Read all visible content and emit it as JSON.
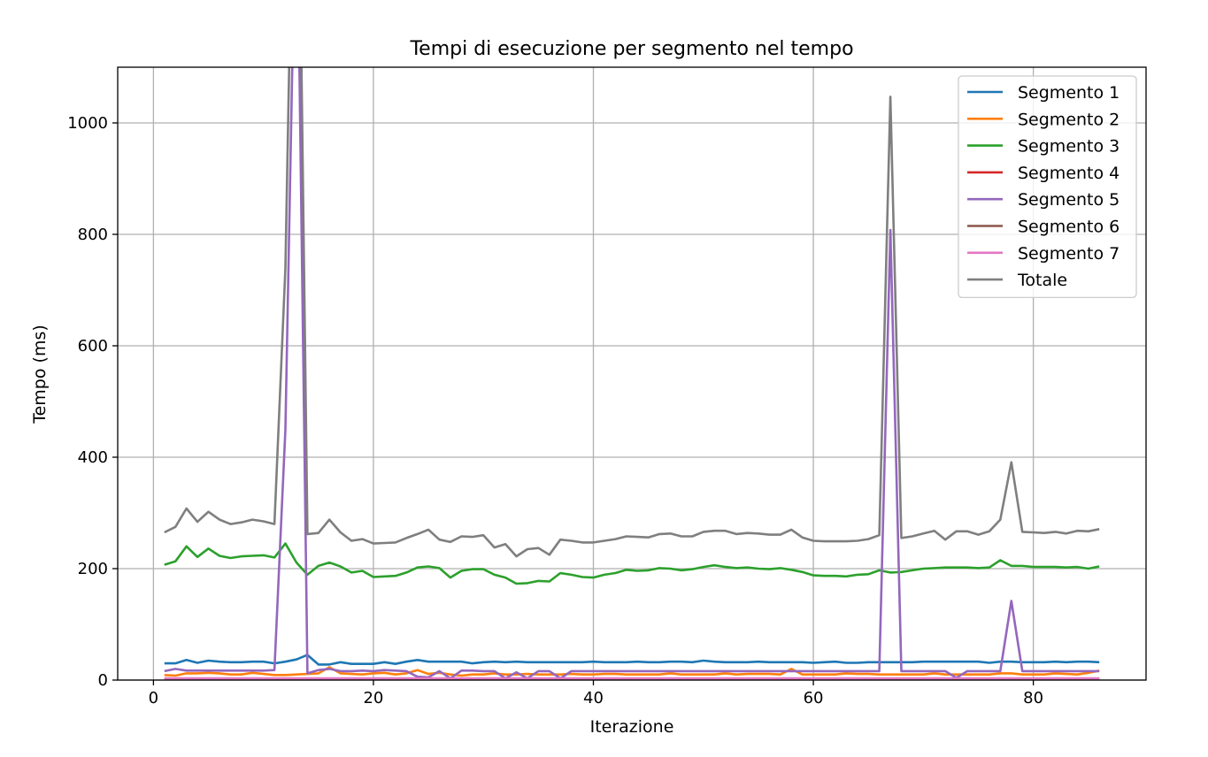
{
  "chart_data": {
    "type": "line",
    "title": "Tempi di esecuzione per segmento nel tempo",
    "xlabel": "Iterazione",
    "ylabel": "Tempo (ms)",
    "xlim": [
      -3.25,
      90.25
    ],
    "ylim": [
      0,
      1100
    ],
    "xticks": [
      0,
      20,
      40,
      60,
      80
    ],
    "yticks": [
      0,
      200,
      400,
      600,
      800,
      1000
    ],
    "grid": true,
    "legend_position": "top-right",
    "x": [
      1,
      2,
      3,
      4,
      5,
      6,
      7,
      8,
      9,
      10,
      11,
      12,
      13,
      14,
      15,
      16,
      17,
      18,
      19,
      20,
      21,
      22,
      23,
      24,
      25,
      26,
      27,
      28,
      29,
      30,
      31,
      32,
      33,
      34,
      35,
      36,
      37,
      38,
      39,
      40,
      41,
      42,
      43,
      44,
      45,
      46,
      47,
      48,
      49,
      50,
      51,
      52,
      53,
      54,
      55,
      56,
      57,
      58,
      59,
      60,
      61,
      62,
      63,
      64,
      65,
      66,
      67,
      68,
      69,
      70,
      71,
      72,
      73,
      74,
      75,
      76,
      77,
      78,
      79,
      80,
      81,
      82,
      83,
      84,
      85,
      86
    ],
    "series": [
      {
        "name": "Segmento 1",
        "color": "#1f77b4",
        "values": [
          30,
          30,
          36,
          31,
          35,
          33,
          32,
          32,
          33,
          33,
          30,
          33,
          37,
          45,
          28,
          28,
          32,
          29,
          29,
          29,
          32,
          29,
          33,
          36,
          33,
          33,
          33,
          33,
          30,
          32,
          33,
          32,
          33,
          32,
          32,
          32,
          32,
          32,
          32,
          33,
          32,
          32,
          32,
          33,
          32,
          32,
          33,
          33,
          32,
          35,
          33,
          32,
          32,
          32,
          33,
          32,
          32,
          32,
          32,
          31,
          32,
          33,
          31,
          31,
          32,
          32,
          32,
          32,
          32,
          33,
          33,
          33,
          33,
          33,
          33,
          31,
          33,
          33,
          32,
          32,
          32,
          33,
          32,
          33,
          33,
          32
        ]
      },
      {
        "name": "Segmento 2",
        "color": "#ff7f0e",
        "values": [
          9,
          8,
          12,
          12,
          13,
          12,
          10,
          10,
          13,
          11,
          9,
          9,
          10,
          11,
          12,
          23,
          12,
          11,
          10,
          12,
          13,
          10,
          12,
          18,
          11,
          13,
          10,
          8,
          10,
          10,
          12,
          10,
          10,
          11,
          10,
          10,
          10,
          11,
          10,
          10,
          11,
          11,
          10,
          10,
          10,
          10,
          12,
          10,
          10,
          10,
          10,
          12,
          10,
          11,
          11,
          11,
          10,
          20,
          10,
          10,
          10,
          10,
          12,
          11,
          11,
          10,
          10,
          10,
          10,
          10,
          12,
          10,
          10,
          10,
          10,
          10,
          12,
          12,
          10,
          10,
          10,
          12,
          11,
          10,
          13,
          17
        ]
      },
      {
        "name": "Segmento 3",
        "color": "#2ca02c",
        "values": [
          207,
          213,
          240,
          221,
          236,
          223,
          219,
          222,
          223,
          224,
          220,
          245,
          211,
          189,
          205,
          211,
          204,
          193,
          196,
          185,
          186,
          187,
          193,
          202,
          204,
          201,
          184,
          196,
          199,
          199,
          189,
          184,
          173,
          174,
          178,
          177,
          192,
          189,
          185,
          184,
          189,
          192,
          198,
          196,
          197,
          201,
          200,
          197,
          199,
          203,
          206,
          203,
          201,
          202,
          200,
          199,
          201,
          198,
          194,
          188,
          187,
          187,
          186,
          189,
          190,
          197,
          193,
          194,
          197,
          200,
          201,
          202,
          202,
          202,
          201,
          202,
          215,
          205,
          205,
          203,
          203,
          203,
          202,
          203,
          200,
          204
        ]
      },
      {
        "name": "Segmento 4",
        "color": "#d62728",
        "values": [
          2,
          2,
          2,
          2,
          2,
          2,
          2,
          2,
          2,
          2,
          2,
          2,
          2,
          2,
          2,
          2,
          2,
          2,
          2,
          2,
          2,
          2,
          2,
          2,
          2,
          2,
          2,
          2,
          2,
          2,
          2,
          2,
          2,
          2,
          2,
          2,
          2,
          2,
          2,
          2,
          2,
          2,
          2,
          2,
          2,
          2,
          2,
          2,
          2,
          2,
          2,
          2,
          2,
          2,
          2,
          2,
          2,
          2,
          2,
          2,
          2,
          2,
          2,
          2,
          2,
          2,
          2,
          2,
          2,
          2,
          2,
          2,
          2,
          2,
          2,
          2,
          2,
          2,
          2,
          2,
          2,
          2,
          2,
          2,
          2,
          2
        ]
      },
      {
        "name": "Segmento 5",
        "color": "#9467bd",
        "values": [
          16,
          20,
          17,
          17,
          17,
          17,
          17,
          17,
          17,
          17,
          18,
          450,
          1500,
          12,
          18,
          20,
          16,
          16,
          17,
          16,
          18,
          17,
          16,
          6,
          5,
          16,
          3,
          17,
          17,
          16,
          16,
          3,
          14,
          3,
          16,
          16,
          3,
          16,
          16,
          16,
          16,
          16,
          16,
          16,
          16,
          16,
          16,
          16,
          16,
          16,
          16,
          16,
          16,
          16,
          16,
          16,
          16,
          16,
          16,
          16,
          16,
          16,
          16,
          16,
          16,
          16,
          808,
          16,
          16,
          16,
          16,
          16,
          4,
          16,
          16,
          16,
          16,
          142,
          16,
          16,
          16,
          16,
          16,
          16,
          16,
          16
        ]
      },
      {
        "name": "Segmento 6",
        "color": "#8c564b",
        "values": [
          1,
          1,
          1,
          1,
          1,
          1,
          1,
          1,
          1,
          1,
          1,
          1,
          1,
          1,
          1,
          1,
          1,
          1,
          1,
          1,
          1,
          1,
          1,
          1,
          1,
          1,
          1,
          1,
          1,
          1,
          1,
          1,
          1,
          1,
          1,
          1,
          1,
          1,
          1,
          1,
          1,
          1,
          1,
          1,
          1,
          1,
          1,
          1,
          1,
          1,
          1,
          1,
          1,
          1,
          1,
          1,
          1,
          1,
          1,
          1,
          1,
          1,
          1,
          1,
          1,
          1,
          1,
          1,
          1,
          1,
          1,
          1,
          1,
          1,
          1,
          1,
          1,
          1,
          1,
          1,
          1,
          1,
          1,
          1,
          1,
          1
        ]
      },
      {
        "name": "Segmento 7",
        "color": "#e377c2",
        "values": [
          3,
          3,
          3,
          3,
          3,
          3,
          3,
          3,
          3,
          3,
          3,
          3,
          3,
          3,
          3,
          3,
          3,
          3,
          3,
          3,
          3,
          3,
          3,
          3,
          3,
          3,
          3,
          3,
          3,
          3,
          3,
          3,
          3,
          3,
          3,
          3,
          3,
          3,
          3,
          3,
          3,
          3,
          3,
          3,
          3,
          3,
          3,
          3,
          3,
          3,
          3,
          3,
          3,
          3,
          3,
          3,
          3,
          3,
          3,
          3,
          3,
          3,
          3,
          3,
          3,
          3,
          3,
          3,
          3,
          3,
          3,
          3,
          3,
          3,
          3,
          3,
          3,
          3,
          3,
          3,
          3,
          3,
          3,
          3,
          3,
          3
        ]
      },
      {
        "name": "Totale",
        "color": "#7f7f7f",
        "values": [
          265,
          275,
          308,
          284,
          302,
          288,
          280,
          283,
          288,
          285,
          280,
          740,
          1800,
          262,
          264,
          288,
          265,
          250,
          253,
          245,
          246,
          247,
          255,
          262,
          270,
          252,
          248,
          258,
          257,
          260,
          238,
          244,
          222,
          235,
          237,
          225,
          252,
          250,
          247,
          247,
          250,
          253,
          258,
          257,
          256,
          262,
          263,
          258,
          258,
          266,
          268,
          268,
          262,
          264,
          263,
          261,
          261,
          270,
          256,
          250,
          249,
          249,
          249,
          250,
          253,
          260,
          1047,
          255,
          258,
          263,
          268,
          252,
          267,
          267,
          261,
          267,
          288,
          391,
          266,
          265,
          264,
          266,
          263,
          268,
          267,
          271
        ]
      }
    ]
  }
}
